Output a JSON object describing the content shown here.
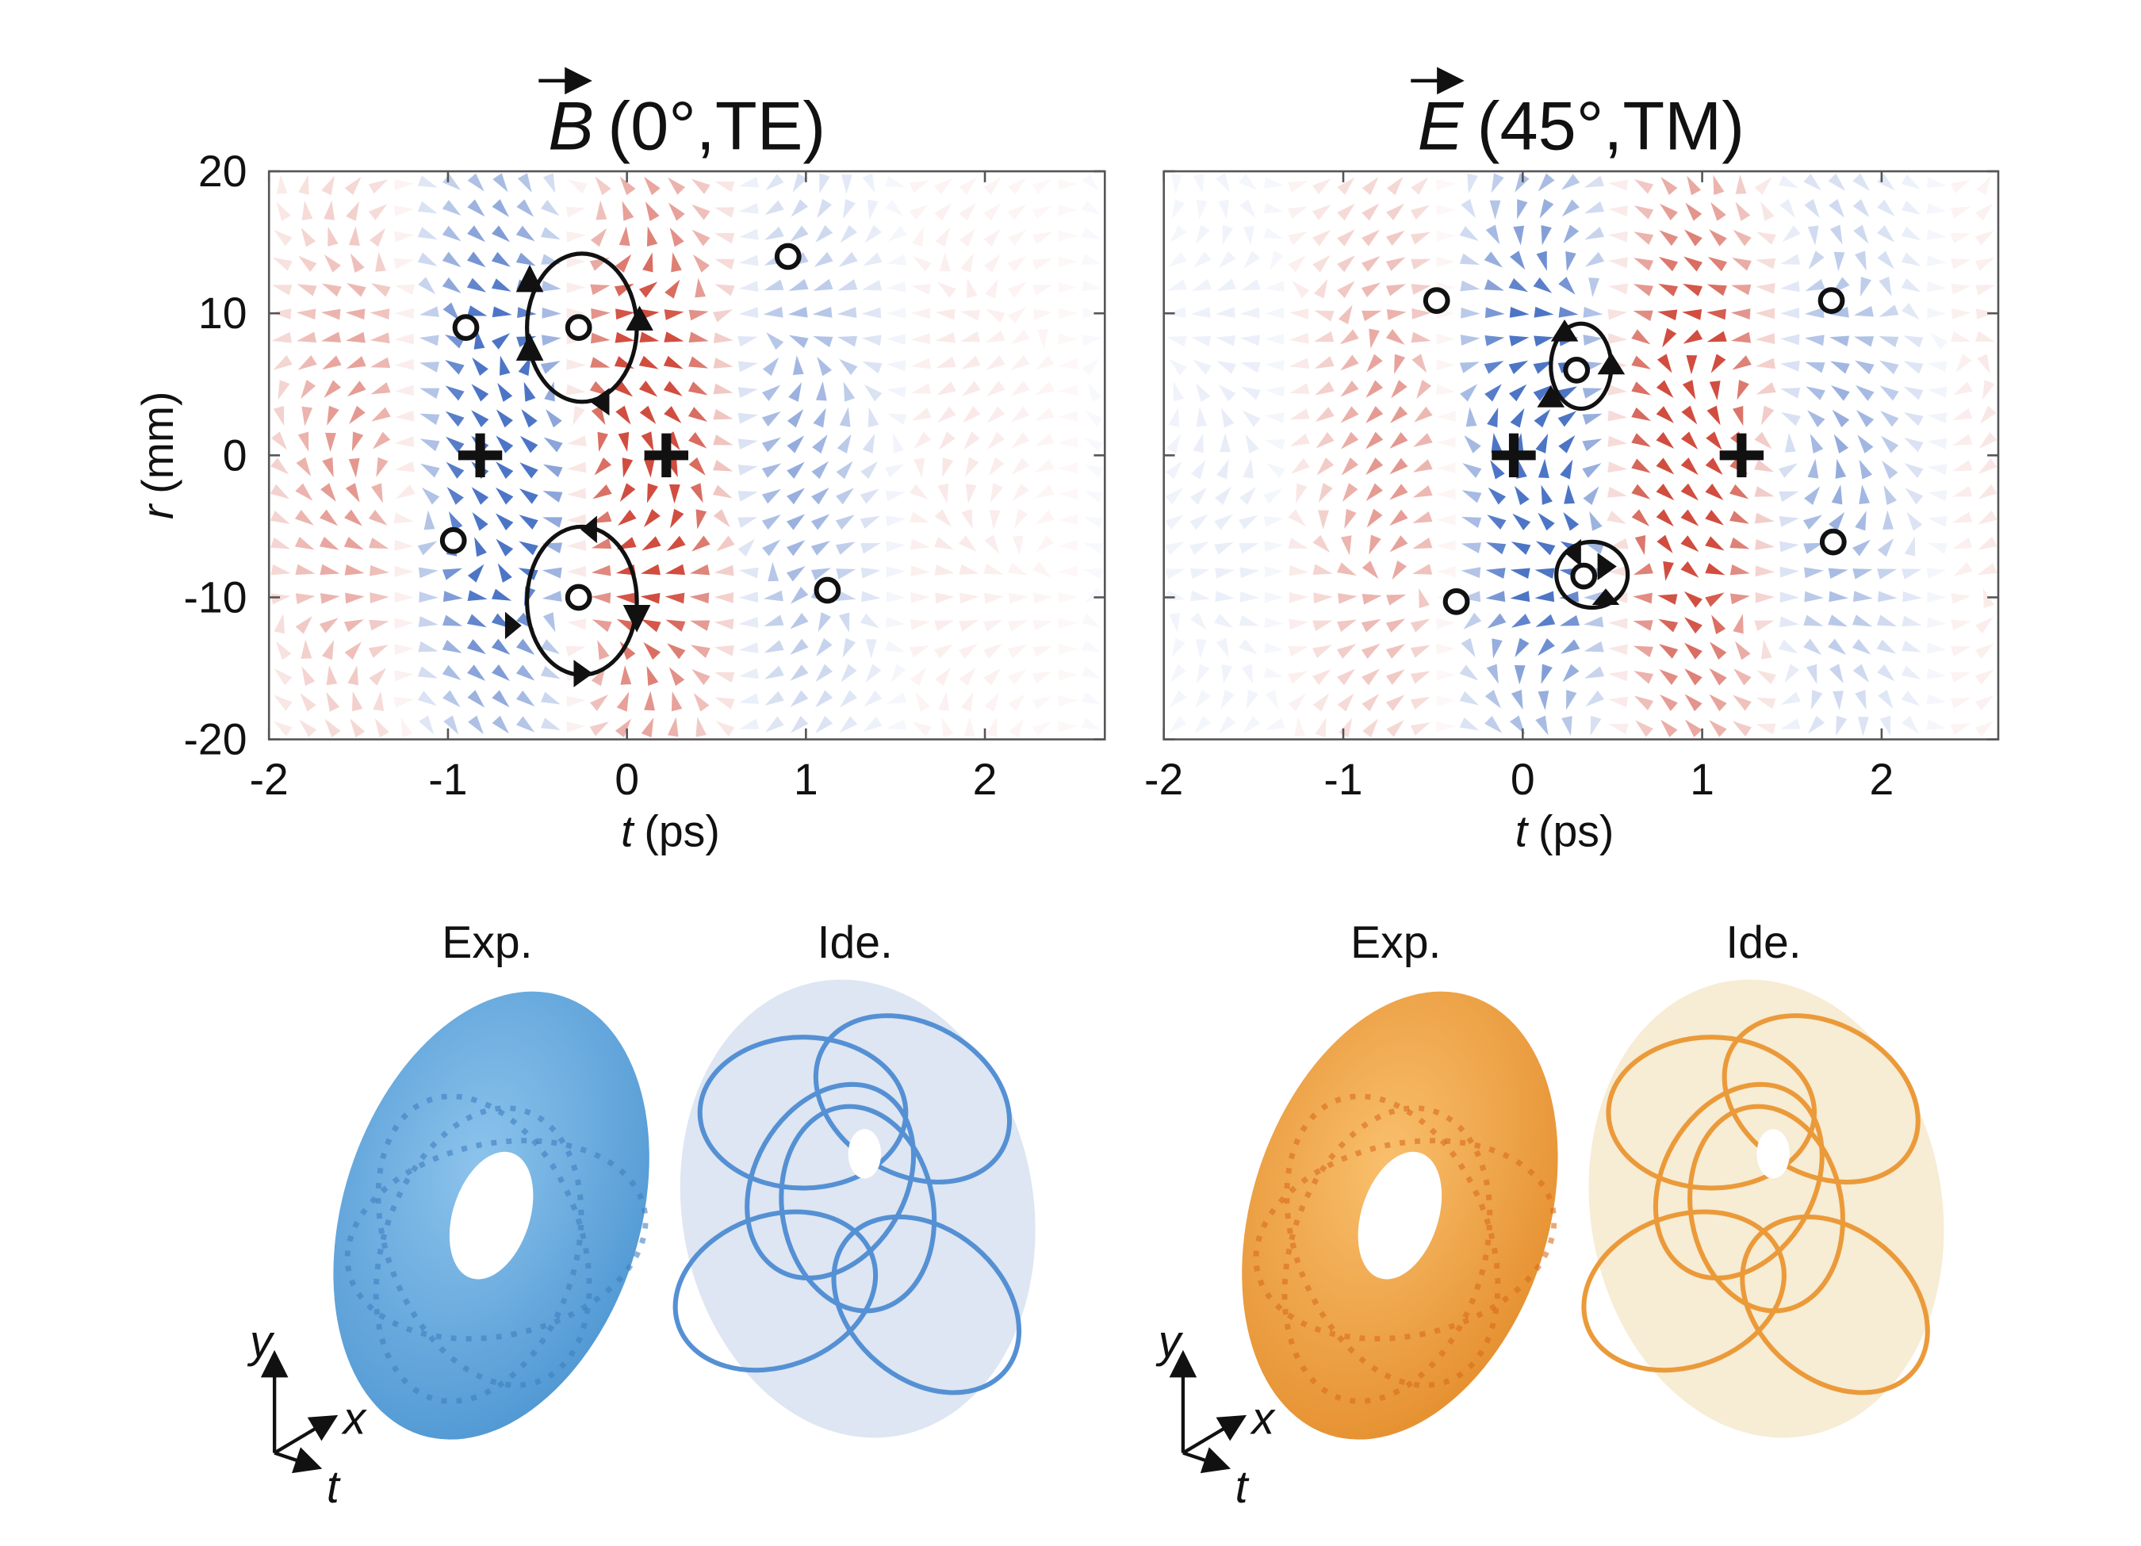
{
  "chart_data": [
    {
      "type": "quiver",
      "title_symbol": "B",
      "title_rest": "(0°,TE)",
      "x_label_symbol": "t",
      "x_label_unit": "(ps)",
      "y_label_symbol": "r",
      "y_label_unit": "(mm)",
      "xlim": [
        -2,
        2.67
      ],
      "ylim": [
        -20,
        20
      ],
      "xticks": [
        -2,
        -1,
        0,
        1,
        2
      ],
      "yticks": [
        -20,
        -10,
        0,
        10,
        20
      ],
      "show_ytick_labels": true,
      "series": [
        {
          "name": "circles",
          "x": [
            -0.9,
            -0.27,
            0.9,
            -0.97,
            -0.27,
            1.12
          ],
          "values": [
            9,
            9,
            14,
            -6,
            -10,
            -9.5
          ]
        },
        {
          "name": "crosses",
          "x": [
            -0.82,
            0.22
          ],
          "values": [
            0,
            0
          ]
        }
      ]
    },
    {
      "type": "quiver",
      "title_symbol": "E",
      "title_rest": "(45°,TM)",
      "x_label_symbol": "t",
      "x_label_unit": "(ps)",
      "xlim": [
        -2,
        2.65
      ],
      "ylim": [
        -20,
        20
      ],
      "xticks": [
        -2,
        -1,
        0,
        1,
        2
      ],
      "yticks": [
        -20,
        -10,
        0,
        10,
        20
      ],
      "show_ytick_labels": false,
      "series": [
        {
          "name": "circles",
          "x": [
            -0.48,
            0.3,
            1.72,
            -0.37,
            0.34,
            1.73
          ],
          "values": [
            10.9,
            6,
            10.9,
            -10.3,
            -8.5,
            -6.1
          ]
        },
        {
          "name": "crosses",
          "x": [
            -0.05,
            1.22
          ],
          "values": [
            0,
            0
          ]
        }
      ]
    }
  ],
  "renders": [
    {
      "exp_label": "Exp.",
      "ide_label": "Ide.",
      "axes": [
        "y",
        "x",
        "t"
      ]
    },
    {
      "exp_label": "Exp.",
      "ide_label": "Ide.",
      "axes": [
        "y",
        "x",
        "t"
      ]
    }
  ]
}
